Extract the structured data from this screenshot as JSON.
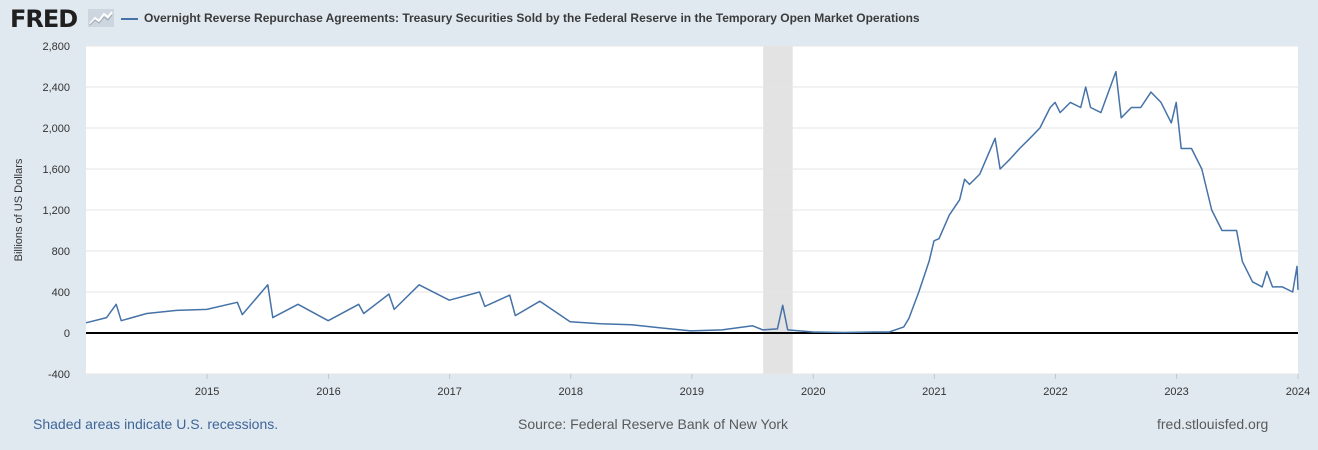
{
  "header": {
    "logo_text": "FRED",
    "title": "Overnight Reverse Repurchase Agreements: Treasury Securities Sold by the Federal Reserve in the Temporary Open Market Operations"
  },
  "footer": {
    "recession_note": "Shaded areas indicate U.S. recessions.",
    "source": "Source: Federal Reserve Bank of New York",
    "site": "fred.stlouisfed.org"
  },
  "colors": {
    "line": "#4572a7",
    "recession": "#e3e3e3",
    "background": "#e1e9f0",
    "plot": "#ffffff",
    "zero_line": "#000000",
    "link": "#3e6598"
  },
  "icons": [
    "line-chart-icon"
  ],
  "chart_data": {
    "type": "line",
    "title": "Overnight Reverse Repurchase Agreements: Treasury Securities Sold by the Federal Reserve in the Temporary Open Market Operations",
    "xlabel": "",
    "ylabel": "Billions of US Dollars",
    "xlim": [
      "2014-07-01",
      "2024-07-01"
    ],
    "ylim": [
      -400,
      2800
    ],
    "x_ticks": [
      "2015",
      "2016",
      "2017",
      "2018",
      "2019",
      "2020",
      "2021",
      "2022",
      "2023",
      "2024"
    ],
    "y_ticks": [
      "-400",
      "0",
      "400",
      "800",
      "1,200",
      "1,600",
      "2,000",
      "2,400",
      "2,800"
    ],
    "y_tick_values": [
      -400,
      0,
      400,
      800,
      1200,
      1600,
      2000,
      2400,
      2800
    ],
    "grid": "horizontal",
    "recession_shading": [
      [
        "2020-02-01",
        "2020-04-30"
      ]
    ],
    "series": [
      {
        "name": "Overnight Reverse Repurchase Agreements: Treasury Securities Sold by the Federal Reserve in the Temporary Open Market Operations",
        "x": [
          "2014-07-01",
          "2014-09-01",
          "2014-09-30",
          "2014-10-15",
          "2014-12-31",
          "2015-03-31",
          "2015-06-30",
          "2015-09-30",
          "2015-10-15",
          "2015-12-31",
          "2016-01-15",
          "2016-03-31",
          "2016-06-30",
          "2016-09-30",
          "2016-10-15",
          "2016-12-30",
          "2017-01-15",
          "2017-03-31",
          "2017-06-30",
          "2017-09-29",
          "2017-10-15",
          "2017-12-29",
          "2018-01-15",
          "2018-03-30",
          "2018-06-29",
          "2018-09-28",
          "2018-12-31",
          "2019-03-29",
          "2019-06-28",
          "2019-09-30",
          "2019-12-31",
          "2020-01-31",
          "2020-03-15",
          "2020-03-31",
          "2020-04-15",
          "2020-06-30",
          "2020-09-30",
          "2020-12-31",
          "2021-02-15",
          "2021-03-31",
          "2021-04-15",
          "2021-05-15",
          "2021-06-15",
          "2021-06-30",
          "2021-07-15",
          "2021-08-15",
          "2021-09-15",
          "2021-09-30",
          "2021-10-15",
          "2021-11-15",
          "2021-12-31",
          "2022-01-15",
          "2022-02-15",
          "2022-03-15",
          "2022-04-15",
          "2022-05-15",
          "2022-06-15",
          "2022-06-30",
          "2022-07-15",
          "2022-08-15",
          "2022-09-15",
          "2022-09-30",
          "2022-10-15",
          "2022-11-15",
          "2022-12-30",
          "2023-01-15",
          "2023-02-15",
          "2023-03-15",
          "2023-04-15",
          "2023-05-15",
          "2023-06-15",
          "2023-06-30",
          "2023-07-15",
          "2023-08-15",
          "2023-09-15",
          "2023-10-15",
          "2023-11-15",
          "2023-12-29",
          "2024-01-15",
          "2024-02-15",
          "2024-03-15",
          "2024-03-29",
          "2024-04-15",
          "2024-05-15",
          "2024-06-15",
          "2024-06-28",
          "2024-07-01"
        ],
        "y": [
          100,
          150,
          280,
          120,
          190,
          220,
          230,
          300,
          180,
          470,
          150,
          280,
          120,
          280,
          190,
          380,
          230,
          470,
          320,
          400,
          260,
          370,
          170,
          310,
          110,
          90,
          80,
          50,
          20,
          30,
          70,
          30,
          40,
          270,
          30,
          10,
          5,
          10,
          10,
          60,
          140,
          400,
          700,
          900,
          920,
          1150,
          1300,
          1500,
          1450,
          1550,
          1900,
          1600,
          1700,
          1800,
          1900,
          2000,
          2200,
          2250,
          2150,
          2250,
          2200,
          2400,
          2200,
          2150,
          2550,
          2100,
          2200,
          2200,
          2350,
          2250,
          2050,
          2250,
          1800,
          1800,
          1600,
          1200,
          1000,
          1000,
          700,
          500,
          450,
          600,
          450,
          450,
          400,
          650,
          420
        ]
      }
    ]
  }
}
